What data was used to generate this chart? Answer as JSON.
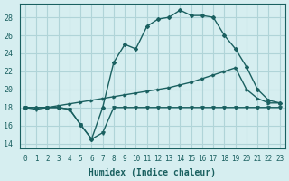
{
  "xlabel": "Humidex (Indice chaleur)",
  "ylabel": "",
  "xlim": [
    -0.5,
    23.5
  ],
  "ylim": [
    13.5,
    29.5
  ],
  "yticks": [
    14,
    16,
    18,
    20,
    22,
    24,
    26,
    28
  ],
  "xticks": [
    0,
    1,
    2,
    3,
    4,
    5,
    6,
    7,
    8,
    9,
    10,
    11,
    12,
    13,
    14,
    15,
    16,
    17,
    18,
    19,
    20,
    21,
    22,
    23
  ],
  "bg_color": "#d6eef0",
  "grid_color": "#b0d4d8",
  "line_color": "#1a6060",
  "lines": [
    {
      "x": [
        0,
        1,
        2,
        3,
        4,
        5,
        6,
        7,
        8,
        9,
        10,
        11,
        12,
        13,
        14,
        15,
        16,
        17,
        18,
        19,
        20,
        21,
        22,
        23
      ],
      "y": [
        18,
        17.8,
        18,
        18,
        17.8,
        16.1,
        14.5,
        15.2,
        18,
        18,
        18,
        18,
        18,
        18,
        18,
        18,
        18,
        18,
        18,
        18,
        18,
        18,
        18,
        18
      ]
    },
    {
      "x": [
        0,
        1,
        2,
        3,
        4,
        5,
        6,
        7,
        8,
        9,
        10,
        11,
        12,
        13,
        14,
        15,
        16,
        17,
        18,
        19,
        20,
        21,
        22,
        23
      ],
      "y": [
        18,
        18,
        18,
        18.2,
        18.4,
        18.6,
        18.8,
        19.0,
        19.2,
        19.4,
        19.6,
        19.8,
        20.0,
        20.2,
        20.5,
        20.8,
        21.2,
        21.6,
        22.0,
        22.4,
        20.0,
        19.0,
        18.5,
        18.5
      ]
    },
    {
      "x": [
        0,
        1,
        2,
        3,
        4,
        5,
        6,
        7,
        8,
        9,
        10,
        11,
        12,
        13,
        14,
        15,
        16,
        17,
        18,
        19,
        20,
        21,
        22,
        23
      ],
      "y": [
        18,
        18,
        18,
        18,
        17.8,
        16.1,
        14.5,
        18,
        23,
        25,
        24.5,
        27,
        27.8,
        28,
        28.8,
        28.2,
        28.2,
        28,
        26,
        24.5,
        22.5,
        20,
        18.8,
        18.5
      ]
    }
  ]
}
